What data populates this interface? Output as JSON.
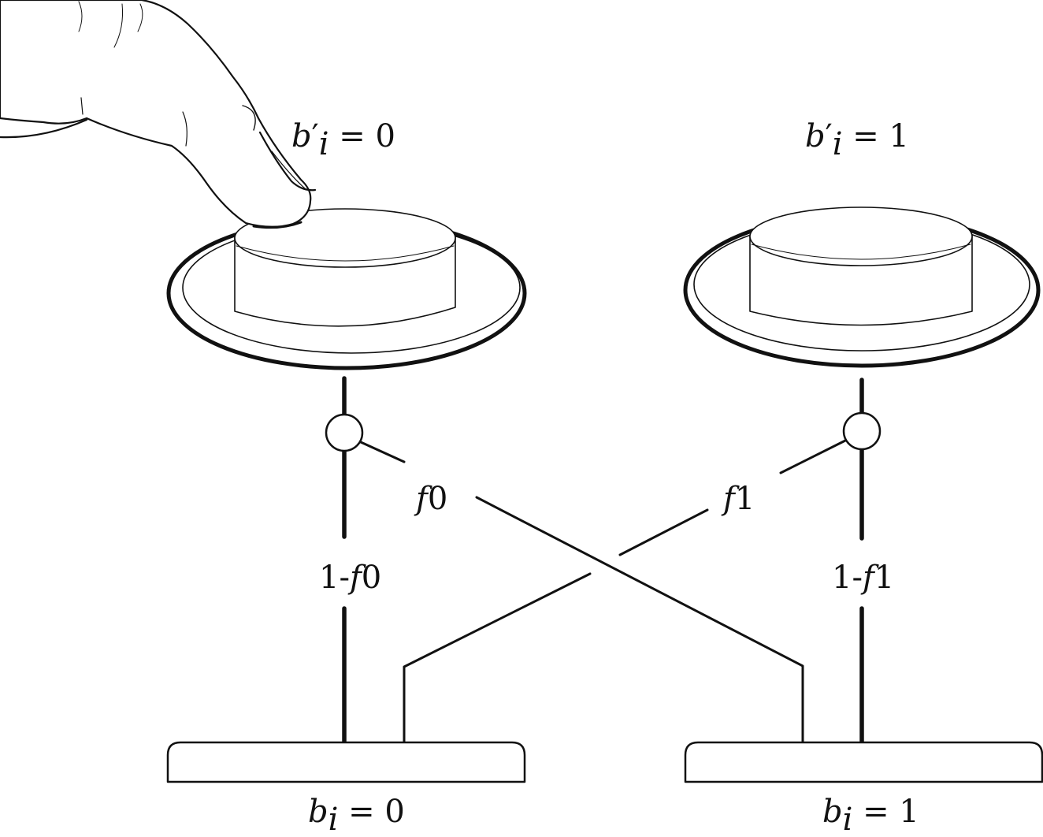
{
  "buttons": [
    {
      "id": "press-0",
      "symbol": "b",
      "prime": "′",
      "subscript": "i",
      "relation": " = 0",
      "pressed": true
    },
    {
      "id": "press-1",
      "symbol": "b",
      "prime": "′",
      "subscript": "i",
      "relation": " = 1",
      "pressed": false
    }
  ],
  "pads": [
    {
      "id": "pad-0",
      "symbol": "b",
      "subscript": "i",
      "relation": " = 0"
    },
    {
      "id": "pad-1",
      "symbol": "b",
      "subscript": "i",
      "relation": " = 1"
    }
  ],
  "edges": [
    {
      "id": "stay-0",
      "prefix": "1-",
      "symbol": "f",
      "subscript": "0",
      "from": "pad-0",
      "to": "press-0"
    },
    {
      "id": "cross-0",
      "prefix": "",
      "symbol": "f",
      "subscript": "0",
      "from": "pad-1",
      "to": "press-0"
    },
    {
      "id": "cross-1",
      "prefix": "",
      "symbol": "f",
      "subscript": "1",
      "from": "pad-0",
      "to": "press-1"
    },
    {
      "id": "stay-1",
      "prefix": "1-",
      "symbol": "f",
      "subscript": "1",
      "from": "pad-1",
      "to": "press-1"
    }
  ],
  "colors": {
    "ink": "#111111",
    "background": "#ffffff"
  }
}
